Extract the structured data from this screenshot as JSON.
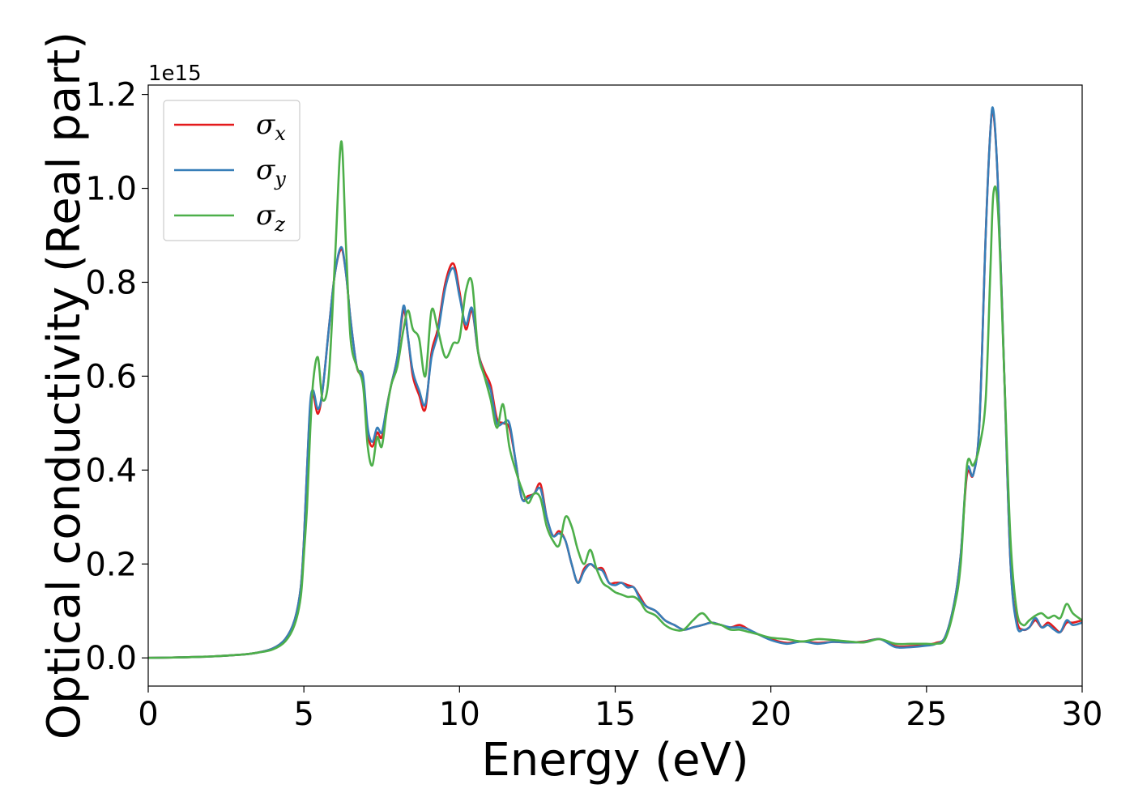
{
  "chart_data": {
    "type": "line",
    "xlabel": "Energy (eV)",
    "ylabel": "Optical conductivity (Real part)",
    "y_offset_label": "1e15",
    "xlim": [
      0,
      30
    ],
    "ylim": [
      -0.06,
      1.22
    ],
    "x_ticks": [
      0,
      5,
      10,
      15,
      20,
      25,
      30
    ],
    "y_ticks": [
      0.0,
      0.2,
      0.4,
      0.6,
      0.8,
      1.0,
      1.2
    ],
    "x_tick_labels": [
      "0",
      "5",
      "10",
      "15",
      "20",
      "25",
      "30"
    ],
    "y_tick_labels": [
      "0.0",
      "0.2",
      "0.4",
      "0.6",
      "0.8",
      "1.0",
      "1.2"
    ],
    "grid": false,
    "legend_position": "top-left",
    "series": [
      {
        "name": "σx",
        "symbol": "σ",
        "subscript": "x",
        "color": "#e41a1c",
        "x": [
          0,
          1,
          2,
          3,
          3.5,
          4,
          4.4,
          4.7,
          4.9,
          5.0,
          5.1,
          5.2,
          5.3,
          5.45,
          5.6,
          5.8,
          6.0,
          6.2,
          6.35,
          6.5,
          6.7,
          6.9,
          7.05,
          7.2,
          7.35,
          7.5,
          7.65,
          7.8,
          8.0,
          8.2,
          8.35,
          8.5,
          8.7,
          8.9,
          9.1,
          9.3,
          9.55,
          9.8,
          10.0,
          10.2,
          10.4,
          10.6,
          10.8,
          11.0,
          11.2,
          11.4,
          11.6,
          11.8,
          12.0,
          12.2,
          12.4,
          12.6,
          12.8,
          13.0,
          13.2,
          13.4,
          13.6,
          13.8,
          14.0,
          14.2,
          14.4,
          14.6,
          14.8,
          15.0,
          15.2,
          15.4,
          15.6,
          15.8,
          16.0,
          16.3,
          16.6,
          16.9,
          17.2,
          17.5,
          17.8,
          18.1,
          18.4,
          18.7,
          19.0,
          19.3,
          19.6,
          20.0,
          20.5,
          21.0,
          21.5,
          22.0,
          22.5,
          23.0,
          23.5,
          24.0,
          24.5,
          25.0,
          25.3,
          25.6,
          25.9,
          26.1,
          26.3,
          26.5,
          26.7,
          26.9,
          27.05,
          27.15,
          27.3,
          27.5,
          27.7,
          27.9,
          28.1,
          28.3,
          28.5,
          28.7,
          28.9,
          29.1,
          29.3,
          29.5,
          29.7,
          30.0
        ],
        "y": [
          0.0,
          0.001,
          0.003,
          0.007,
          0.011,
          0.02,
          0.04,
          0.08,
          0.15,
          0.25,
          0.4,
          0.53,
          0.56,
          0.52,
          0.57,
          0.7,
          0.82,
          0.87,
          0.82,
          0.72,
          0.62,
          0.59,
          0.48,
          0.45,
          0.48,
          0.47,
          0.53,
          0.58,
          0.64,
          0.74,
          0.68,
          0.6,
          0.56,
          0.53,
          0.65,
          0.7,
          0.8,
          0.84,
          0.78,
          0.7,
          0.74,
          0.65,
          0.61,
          0.58,
          0.51,
          0.5,
          0.49,
          0.42,
          0.34,
          0.345,
          0.35,
          0.37,
          0.3,
          0.26,
          0.27,
          0.25,
          0.2,
          0.16,
          0.19,
          0.2,
          0.19,
          0.19,
          0.16,
          0.16,
          0.16,
          0.155,
          0.15,
          0.13,
          0.11,
          0.1,
          0.08,
          0.07,
          0.06,
          0.065,
          0.07,
          0.075,
          0.07,
          0.065,
          0.07,
          0.06,
          0.05,
          0.04,
          0.032,
          0.035,
          0.032,
          0.034,
          0.033,
          0.035,
          0.04,
          0.025,
          0.025,
          0.028,
          0.032,
          0.045,
          0.12,
          0.22,
          0.39,
          0.39,
          0.5,
          0.9,
          1.12,
          1.16,
          1.0,
          0.6,
          0.2,
          0.08,
          0.06,
          0.065,
          0.08,
          0.065,
          0.075,
          0.065,
          0.055,
          0.075,
          0.075,
          0.08
        ]
      },
      {
        "name": "σy",
        "symbol": "σ",
        "subscript": "y",
        "color": "#377eb8",
        "x": [
          0,
          1,
          2,
          3,
          3.5,
          4,
          4.4,
          4.7,
          4.9,
          5.0,
          5.1,
          5.2,
          5.3,
          5.45,
          5.6,
          5.8,
          6.0,
          6.2,
          6.35,
          6.5,
          6.7,
          6.9,
          7.05,
          7.2,
          7.35,
          7.5,
          7.65,
          7.8,
          8.0,
          8.2,
          8.35,
          8.5,
          8.7,
          8.9,
          9.1,
          9.3,
          9.55,
          9.8,
          10.0,
          10.2,
          10.4,
          10.6,
          10.8,
          11.0,
          11.2,
          11.4,
          11.6,
          11.8,
          12.0,
          12.2,
          12.4,
          12.6,
          12.8,
          13.0,
          13.2,
          13.4,
          13.6,
          13.8,
          14.0,
          14.2,
          14.4,
          14.6,
          14.8,
          15.0,
          15.2,
          15.4,
          15.6,
          15.8,
          16.0,
          16.3,
          16.6,
          16.9,
          17.2,
          17.5,
          17.8,
          18.1,
          18.4,
          18.7,
          19.0,
          19.3,
          19.6,
          20.0,
          20.5,
          21.0,
          21.5,
          22.0,
          22.5,
          23.0,
          23.5,
          24.0,
          24.5,
          25.0,
          25.3,
          25.6,
          25.9,
          26.1,
          26.3,
          26.5,
          26.7,
          26.9,
          27.05,
          27.15,
          27.3,
          27.5,
          27.7,
          27.9,
          28.1,
          28.3,
          28.5,
          28.7,
          28.9,
          29.1,
          29.3,
          29.5,
          29.7,
          30.0
        ],
        "y": [
          0.0,
          0.001,
          0.003,
          0.007,
          0.011,
          0.02,
          0.04,
          0.08,
          0.15,
          0.25,
          0.4,
          0.54,
          0.57,
          0.53,
          0.57,
          0.7,
          0.82,
          0.875,
          0.82,
          0.72,
          0.62,
          0.6,
          0.49,
          0.46,
          0.49,
          0.48,
          0.53,
          0.58,
          0.64,
          0.75,
          0.68,
          0.61,
          0.57,
          0.54,
          0.64,
          0.69,
          0.79,
          0.83,
          0.77,
          0.71,
          0.745,
          0.65,
          0.6,
          0.57,
          0.5,
          0.5,
          0.5,
          0.42,
          0.34,
          0.34,
          0.35,
          0.36,
          0.3,
          0.26,
          0.265,
          0.25,
          0.2,
          0.16,
          0.185,
          0.2,
          0.19,
          0.185,
          0.16,
          0.155,
          0.16,
          0.15,
          0.15,
          0.125,
          0.11,
          0.1,
          0.08,
          0.07,
          0.06,
          0.065,
          0.07,
          0.075,
          0.07,
          0.065,
          0.065,
          0.06,
          0.05,
          0.038,
          0.03,
          0.035,
          0.03,
          0.034,
          0.033,
          0.034,
          0.04,
          0.023,
          0.023,
          0.026,
          0.03,
          0.045,
          0.12,
          0.22,
          0.4,
          0.39,
          0.5,
          0.9,
          1.12,
          1.165,
          1.0,
          0.6,
          0.2,
          0.07,
          0.06,
          0.065,
          0.085,
          0.065,
          0.07,
          0.06,
          0.055,
          0.08,
          0.07,
          0.075
        ]
      },
      {
        "name": "σz",
        "symbol": "σ",
        "subscript": "z",
        "color": "#4daf4a",
        "x": [
          0,
          1,
          2,
          3,
          3.5,
          4,
          4.4,
          4.7,
          4.9,
          5.0,
          5.1,
          5.2,
          5.3,
          5.45,
          5.6,
          5.8,
          6.0,
          6.2,
          6.35,
          6.5,
          6.7,
          6.9,
          7.05,
          7.2,
          7.35,
          7.5,
          7.65,
          7.8,
          8.0,
          8.2,
          8.35,
          8.5,
          8.7,
          8.9,
          9.1,
          9.3,
          9.55,
          9.8,
          10.0,
          10.2,
          10.4,
          10.6,
          10.8,
          11.0,
          11.2,
          11.4,
          11.6,
          11.8,
          12.0,
          12.2,
          12.4,
          12.6,
          12.8,
          13.0,
          13.2,
          13.4,
          13.6,
          13.8,
          14.0,
          14.2,
          14.4,
          14.6,
          14.8,
          15.0,
          15.2,
          15.4,
          15.6,
          15.8,
          16.0,
          16.3,
          16.6,
          16.9,
          17.2,
          17.5,
          17.8,
          18.1,
          18.4,
          18.7,
          19.0,
          19.3,
          19.6,
          20.0,
          20.5,
          21.0,
          21.5,
          22.0,
          22.5,
          23.0,
          23.5,
          24.0,
          24.5,
          25.0,
          25.3,
          25.6,
          25.9,
          26.1,
          26.3,
          26.5,
          26.7,
          26.9,
          27.05,
          27.15,
          27.3,
          27.5,
          27.7,
          27.9,
          28.1,
          28.3,
          28.5,
          28.7,
          28.9,
          29.1,
          29.3,
          29.5,
          29.7,
          30.0
        ],
        "y": [
          0.0,
          0.001,
          0.003,
          0.007,
          0.011,
          0.018,
          0.035,
          0.07,
          0.13,
          0.22,
          0.32,
          0.48,
          0.59,
          0.64,
          0.55,
          0.6,
          0.85,
          1.1,
          0.88,
          0.68,
          0.62,
          0.58,
          0.45,
          0.41,
          0.47,
          0.45,
          0.52,
          0.58,
          0.62,
          0.7,
          0.74,
          0.7,
          0.68,
          0.6,
          0.74,
          0.7,
          0.64,
          0.67,
          0.68,
          0.78,
          0.8,
          0.65,
          0.6,
          0.55,
          0.49,
          0.54,
          0.45,
          0.4,
          0.36,
          0.33,
          0.35,
          0.34,
          0.28,
          0.25,
          0.24,
          0.3,
          0.28,
          0.23,
          0.2,
          0.23,
          0.19,
          0.16,
          0.15,
          0.14,
          0.135,
          0.13,
          0.13,
          0.12,
          0.1,
          0.09,
          0.07,
          0.06,
          0.06,
          0.08,
          0.095,
          0.075,
          0.07,
          0.06,
          0.06,
          0.055,
          0.05,
          0.043,
          0.04,
          0.035,
          0.04,
          0.038,
          0.035,
          0.033,
          0.04,
          0.03,
          0.03,
          0.03,
          0.03,
          0.04,
          0.11,
          0.2,
          0.41,
          0.41,
          0.45,
          0.55,
          0.82,
          0.99,
          0.95,
          0.6,
          0.25,
          0.1,
          0.07,
          0.08,
          0.09,
          0.095,
          0.085,
          0.09,
          0.085,
          0.115,
          0.095,
          0.08
        ]
      }
    ]
  }
}
